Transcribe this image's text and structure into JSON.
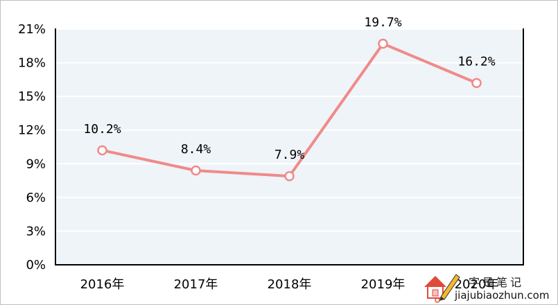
{
  "chart_data": {
    "type": "line",
    "categories": [
      "2016年",
      "2017年",
      "2018年",
      "2019年",
      "2020年"
    ],
    "series": [
      {
        "values": [
          10.2,
          8.4,
          7.9,
          19.7,
          16.2
        ]
      }
    ],
    "data_labels": [
      "10.2%",
      "8.4%",
      "7.9%",
      "19.7%",
      "16.2%"
    ],
    "y_ticks": [
      0,
      3,
      6,
      9,
      12,
      15,
      18,
      21
    ],
    "y_tick_labels": [
      "0%",
      "3%",
      "6%",
      "9%",
      "12%",
      "15%",
      "18%",
      "21%"
    ],
    "ylim": [
      0,
      21
    ],
    "grid": true,
    "colors": {
      "line": "#f08a8a",
      "plot_background": "#eef4f8",
      "gridline": "#ffffff"
    }
  },
  "watermark": {
    "title": "字是笔记",
    "url": "jiajubiaozhun.com"
  }
}
